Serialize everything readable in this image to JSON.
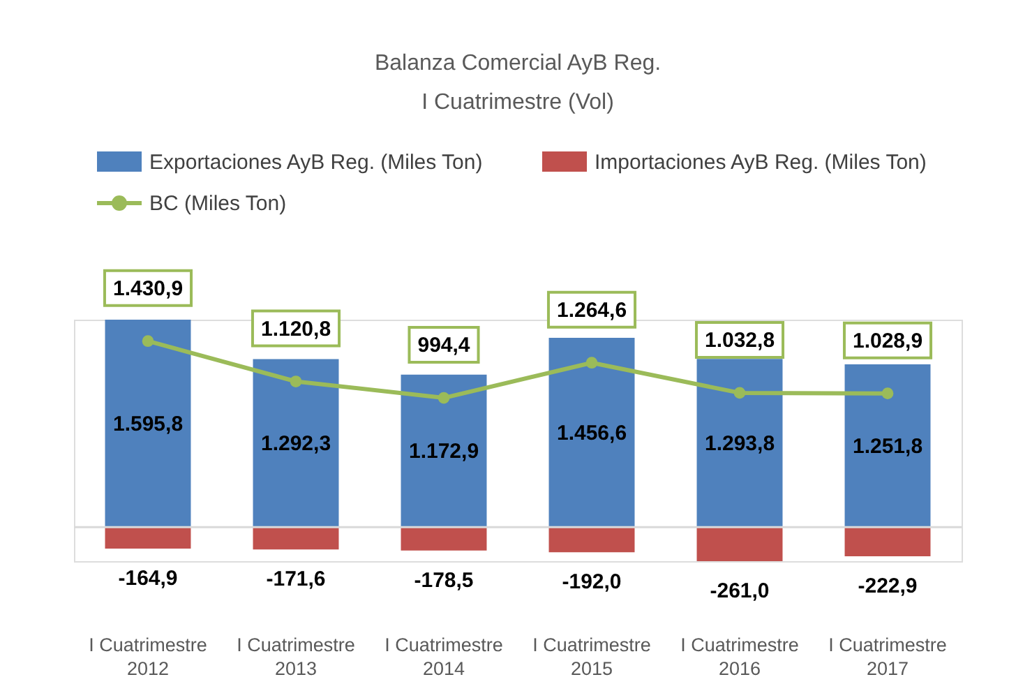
{
  "chart_data": {
    "type": "bar",
    "title": "Balanza Comercial AyB Reg.",
    "subtitle": "I Cuatrimestre (Vol)",
    "categories": [
      "I Cuatrimestre 2012",
      "I Cuatrimestre 2013",
      "I Cuatrimestre 2014",
      "I Cuatrimestre 2015",
      "I Cuatrimestre 2016",
      "I Cuatrimestre 2017"
    ],
    "series": [
      {
        "name": "Exportaciones AyB Reg. (Miles Ton)",
        "color": "#4f81bd",
        "values": [
          1595.8,
          1292.3,
          1172.9,
          1456.6,
          1293.8,
          1251.8
        ],
        "value_labels": [
          "1.595,8",
          "1.292,3",
          "1.172,9",
          "1.456,6",
          "1.293,8",
          "1.251,8"
        ]
      },
      {
        "name": "Importaciones AyB Reg. (Miles Ton)",
        "color": "#c0504d",
        "values": [
          -164.9,
          -171.6,
          -178.5,
          -192.0,
          -261.0,
          -222.9
        ],
        "value_labels": [
          "-164,9",
          "-171,6",
          "-178,5",
          "-192,0",
          "-261,0",
          "-222,9"
        ]
      },
      {
        "name": "BC (Miles Ton)",
        "type": "line",
        "color": "#9bbb59",
        "marker": "circle",
        "values": [
          1430.9,
          1120.8,
          994.4,
          1264.6,
          1032.8,
          1028.9
        ],
        "value_labels": [
          "1.430,9",
          "1.120,8",
          "994,4",
          "1.264,6",
          "1.032,8",
          "1.028,9"
        ]
      }
    ],
    "stacked": true,
    "legend": "top",
    "tick_labels": "x"
  }
}
